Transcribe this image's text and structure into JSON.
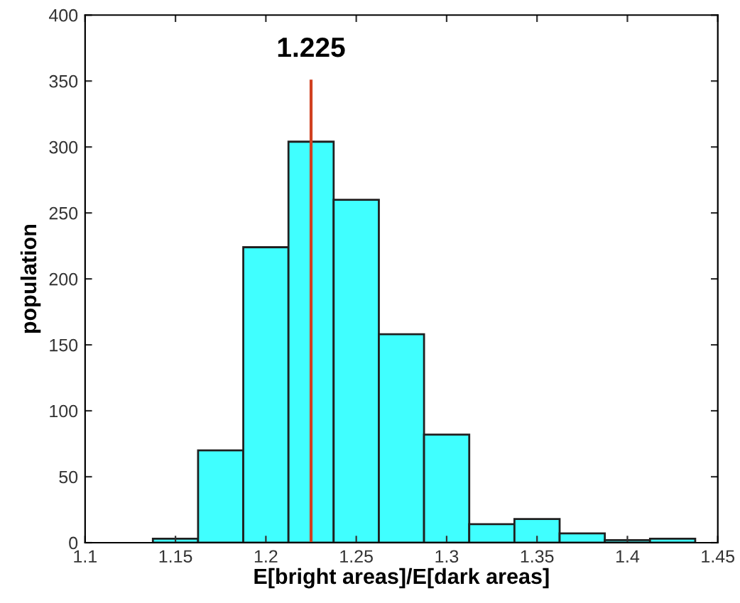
{
  "chart_data": {
    "type": "histogram",
    "xlabel": "E[bright areas]/E[dark areas]",
    "ylabel": "population",
    "bins": [
      1.1375,
      1.1625,
      1.1875,
      1.2125,
      1.2375,
      1.2625,
      1.2875,
      1.3125,
      1.3375,
      1.3625,
      1.3875,
      1.4125,
      1.4375
    ],
    "values": [
      3,
      70,
      224,
      304,
      260,
      158,
      82,
      14,
      18,
      7,
      2,
      3
    ],
    "color": "#40ffff",
    "xlim": [
      1.1,
      1.45
    ],
    "xticks": [
      1.1,
      1.15,
      1.2,
      1.25,
      1.3,
      1.35,
      1.4,
      1.45
    ],
    "ylim": [
      0,
      400
    ],
    "yticks": [
      0,
      50,
      100,
      150,
      200,
      250,
      300,
      350,
      400
    ],
    "ref_lines": [
      {
        "axis": "x",
        "value": 1.225,
        "label": "1.225",
        "color": "#d04020"
      }
    ],
    "grid": false
  }
}
